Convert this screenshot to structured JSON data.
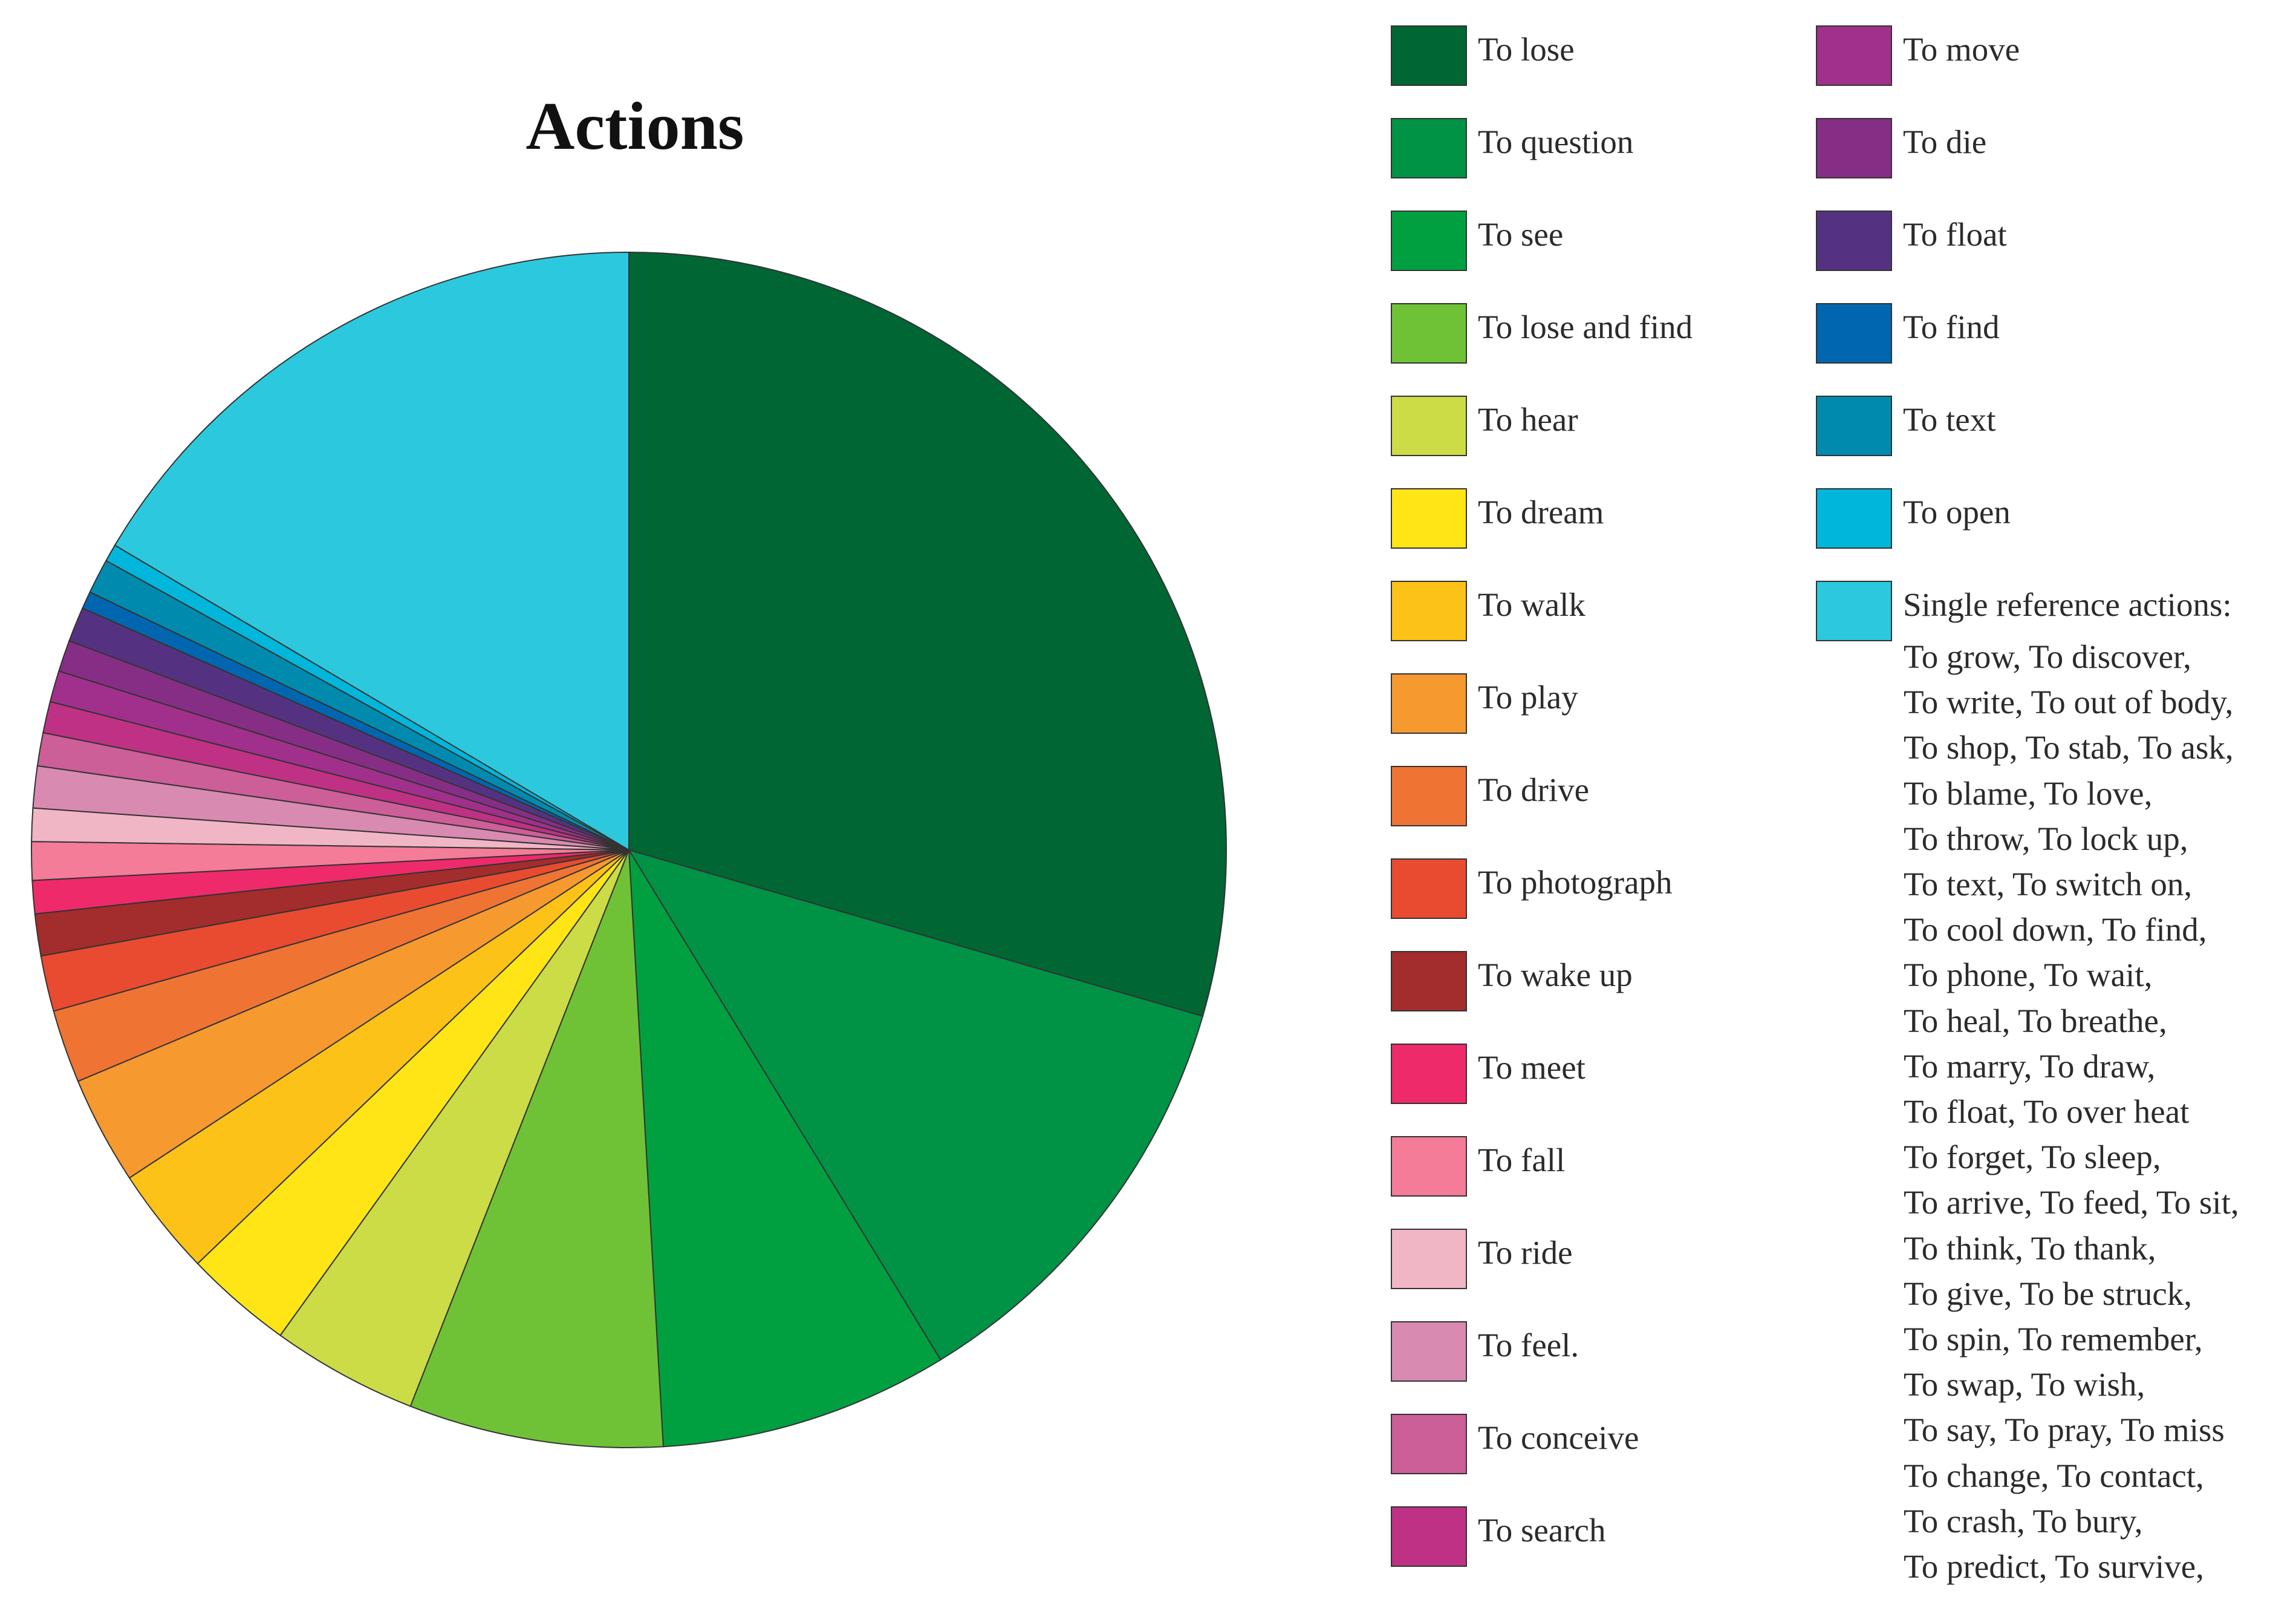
{
  "chart_data": {
    "type": "pie",
    "title": "Actions",
    "slices": [
      {
        "label": "To lose",
        "value": 31.3,
        "color": "#006633"
      },
      {
        "label": "To question",
        "value": 12.5,
        "color": "#009245"
      },
      {
        "label": "To see",
        "value": 8.3,
        "color": "#00A040"
      },
      {
        "label": "To lose and find",
        "value": 7.3,
        "color": "#6FC236"
      },
      {
        "label": "To hear",
        "value": 4.2,
        "color": "#CBDC46"
      },
      {
        "label": "To dream",
        "value": 3.1,
        "color": "#FFE515"
      },
      {
        "label": "To walk",
        "value": 3.1,
        "color": "#FDC217"
      },
      {
        "label": "To play",
        "value": 3.1,
        "color": "#F6992F"
      },
      {
        "label": "To drive",
        "value": 2.1,
        "color": "#EF7433"
      },
      {
        "label": "To photograph",
        "value": 1.6,
        "color": "#E84B30"
      },
      {
        "label": "To wake up",
        "value": 1.2,
        "color": "#A32C2C"
      },
      {
        "label": "To meet",
        "value": 0.95,
        "color": "#EE2A6B"
      },
      {
        "label": "To fall",
        "value": 1.1,
        "color": "#F47C98"
      },
      {
        "label": "To ride",
        "value": 0.95,
        "color": "#F1B6C6"
      },
      {
        "label": "To feel.",
        "value": 1.2,
        "color": "#D98AB0"
      },
      {
        "label": "To conceive",
        "value": 0.95,
        "color": "#CC5E98"
      },
      {
        "label": "To search",
        "value": 0.9,
        "color": "#BF3184"
      },
      {
        "label": "To move",
        "value": 0.9,
        "color": "#A0308B"
      },
      {
        "label": "To die",
        "value": 0.9,
        "color": "#862E86"
      },
      {
        "label": "To float",
        "value": 1.0,
        "color": "#553281"
      },
      {
        "label": "To find",
        "value": 0.5,
        "color": "#0066B0"
      },
      {
        "label": "To text",
        "value": 1.0,
        "color": "#008BAE"
      },
      {
        "label": "To open",
        "value": 0.5,
        "color": "#00B6DB"
      },
      {
        "label": "Single reference actions:",
        "value": 17.5,
        "color": "#2CC9DE"
      }
    ],
    "single_reference_actions_lines": [
      "To grow, To discover,",
      "To write, To out of  body,",
      "To shop, To stab, To ask,",
      "To blame, To love,",
      "To throw, To lock up,",
      "To text, To switch on,",
      "To cool down, To find,",
      "To phone, To wait,",
      "To heal, To breathe,",
      "To marry, To draw,",
      "To float,  To over heat",
      "To forget, To sleep,",
      "To arrive, To feed, To sit,",
      "To think, To thank,",
      "To give, To be struck,",
      "To spin, To remember,",
      "To swap, To wish,",
      "To say, To pray, To miss",
      "To change, To contact,",
      "To crash, To bury,",
      "To predict, To survive,"
    ]
  }
}
